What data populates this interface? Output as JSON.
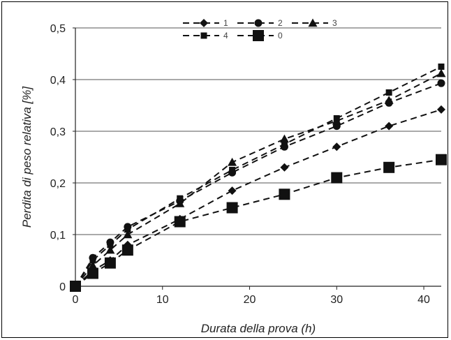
{
  "chart_data": {
    "type": "line",
    "title": "",
    "xlabel": "Durata della prova (h)",
    "ylabel": "Perdita di peso relativa [%]",
    "xlim": [
      0,
      42
    ],
    "ylim": [
      0,
      0.5
    ],
    "x_ticks": [
      "0",
      "10",
      "20",
      "30",
      "40"
    ],
    "y_ticks": [
      "0",
      "0,1",
      "0,2",
      "0,3",
      "0,4",
      "0,5"
    ],
    "grid": "horizontal",
    "legend_position": "top",
    "series": [
      {
        "name": "1",
        "marker": "diamond",
        "x": [
          0,
          2,
          4,
          6,
          12,
          18,
          24,
          30,
          36,
          42
        ],
        "values": [
          0,
          0.03,
          0.05,
          0.08,
          0.13,
          0.185,
          0.23,
          0.27,
          0.31,
          0.342
        ]
      },
      {
        "name": "2",
        "marker": "circle",
        "x": [
          0,
          2,
          4,
          6,
          12,
          18,
          24,
          30,
          36,
          42
        ],
        "values": [
          0,
          0.055,
          0.085,
          0.115,
          0.165,
          0.22,
          0.27,
          0.31,
          0.355,
          0.393
        ]
      },
      {
        "name": "3",
        "marker": "triangle",
        "x": [
          0,
          2,
          4,
          6,
          12,
          18,
          24,
          30,
          36,
          42
        ],
        "values": [
          0,
          0.04,
          0.07,
          0.1,
          0.16,
          0.24,
          0.285,
          0.32,
          0.36,
          0.412
        ]
      },
      {
        "name": "4",
        "marker": "square-small",
        "x": [
          0,
          2,
          4,
          6,
          12,
          18,
          24,
          30,
          36,
          42
        ],
        "values": [
          0,
          0.05,
          0.08,
          0.11,
          0.17,
          0.225,
          0.275,
          0.325,
          0.375,
          0.425
        ]
      },
      {
        "name": "0",
        "marker": "square",
        "x": [
          0,
          2,
          4,
          6,
          12,
          18,
          24,
          30,
          36,
          42
        ],
        "values": [
          0,
          0.025,
          0.045,
          0.07,
          0.125,
          0.152,
          0.178,
          0.21,
          0.23,
          0.245
        ]
      }
    ],
    "colors": {
      "series": "#111111",
      "grid": "#555555",
      "axis": "#222222"
    }
  }
}
